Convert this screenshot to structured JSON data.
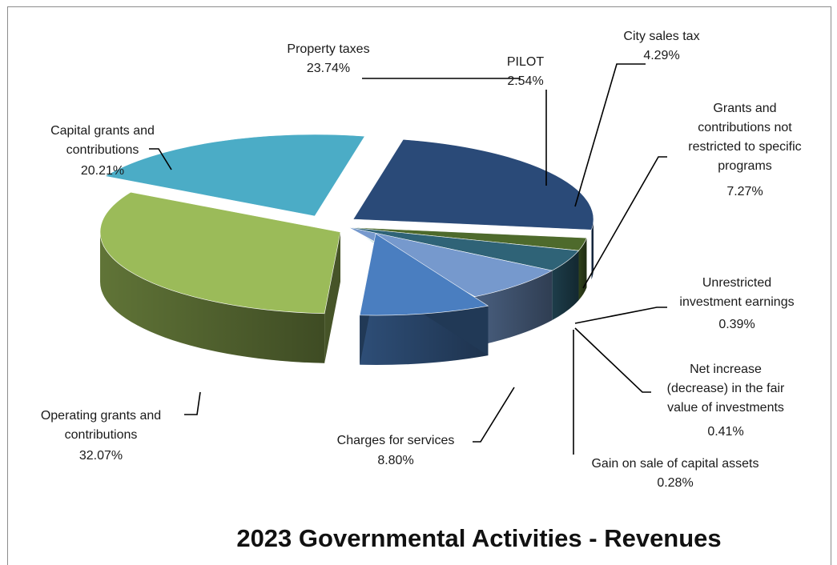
{
  "chart_data": {
    "type": "pie",
    "title": "2023 Governmental Activities - Revenues",
    "slices": [
      {
        "label": "Property taxes",
        "value": 23.74,
        "display": "23.74%",
        "color": "#2a4a78"
      },
      {
        "label": "PILOT",
        "value": 2.54,
        "display": "2.54%",
        "color": "#4e6a2c"
      },
      {
        "label": "City sales tax",
        "value": 4.29,
        "display": "4.29%",
        "color": "#2f6377"
      },
      {
        "label": "Grants and contributions not restricted to specific programs",
        "value": 7.27,
        "display": "7.27%",
        "color": "#7699cd"
      },
      {
        "label": "Unrestricted investment earnings",
        "value": 0.39,
        "display": "0.39%",
        "color": "#a6c05a"
      },
      {
        "label": "Net increase (decrease) in the fair value of investments",
        "value": 0.41,
        "display": "0.41%",
        "color": "#3aa4c2"
      },
      {
        "label": "Gain on sale of capital assets",
        "value": 0.28,
        "display": "0.28%",
        "color": "#2b4a80"
      },
      {
        "label": "Charges for services",
        "value": 8.8,
        "display": "8.80%",
        "color": "#4a7ec0"
      },
      {
        "label": "Operating grants and contributions",
        "value": 32.07,
        "display": "32.07%",
        "color": "#9bbb59"
      },
      {
        "label": "Capital grants and contributions",
        "value": 20.21,
        "display": "20.21%",
        "color": "#4bacc6"
      }
    ]
  }
}
